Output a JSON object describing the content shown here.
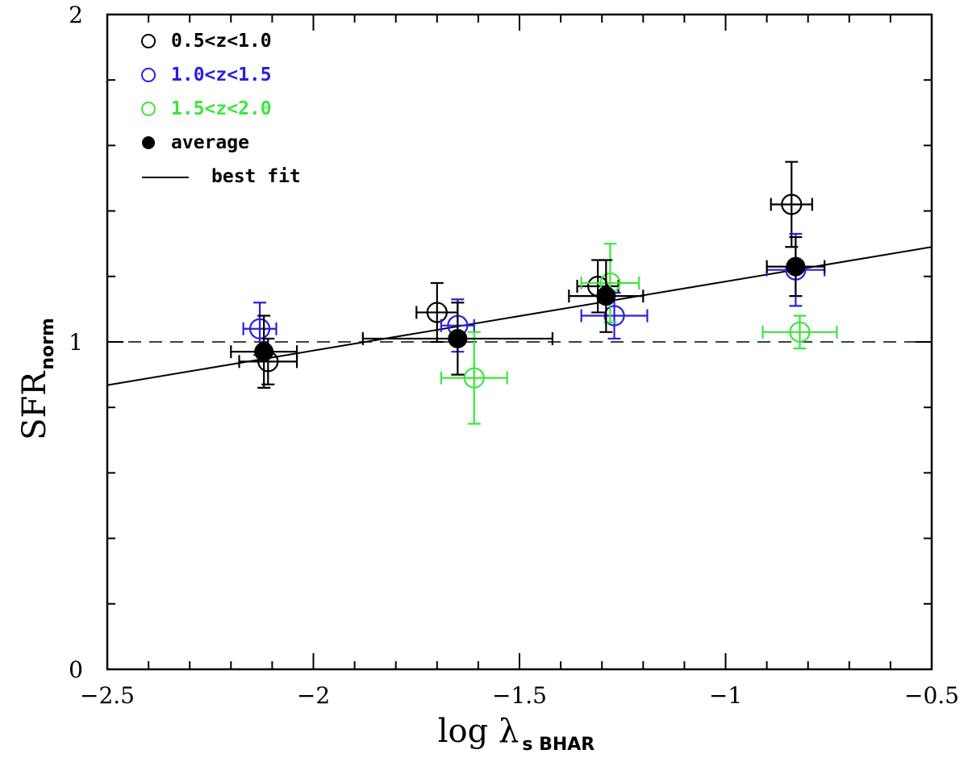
{
  "chart_data": {
    "type": "scatter",
    "xlabel": {
      "main": "log λ",
      "sub": "s BHAR"
    },
    "ylabel": {
      "main": "SFR",
      "sub": "norm"
    },
    "xlim": [
      -2.5,
      -0.5
    ],
    "ylim": [
      0,
      2
    ],
    "x_ticks": [
      {
        "value": -2.5,
        "label": "−2.5"
      },
      {
        "value": -2,
        "label": "−2"
      },
      {
        "value": -1.5,
        "label": "−1.5"
      },
      {
        "value": -1,
        "label": "−1"
      },
      {
        "value": -0.5,
        "label": "−0.5"
      }
    ],
    "y_ticks": [
      {
        "value": 0,
        "label": "0"
      },
      {
        "value": 1,
        "label": "1"
      },
      {
        "value": 2,
        "label": "2"
      }
    ],
    "reference_line": {
      "y": 1.0,
      "style": "dashed"
    },
    "series": [
      {
        "name": "0.5<z<1.0",
        "color": "#000000",
        "marker": "open-circle",
        "points": [
          {
            "x": -2.11,
            "y": 0.94,
            "xerr": 0.07,
            "yerr": 0.07
          },
          {
            "x": -1.7,
            "y": 1.09,
            "xerr": 0.05,
            "yerr": 0.09
          },
          {
            "x": -1.31,
            "y": 1.17,
            "xerr": 0.05,
            "yerr": 0.08
          },
          {
            "x": -0.84,
            "y": 1.42,
            "xerr": 0.05,
            "yerr": 0.13
          }
        ]
      },
      {
        "name": "1.0<z<1.5",
        "color": "#2a1fe0",
        "marker": "open-circle",
        "points": [
          {
            "x": -2.13,
            "y": 1.04,
            "xerr": 0.04,
            "yerr": 0.08
          },
          {
            "x": -1.65,
            "y": 1.05,
            "xerr": 0.04,
            "yerr": 0.08
          },
          {
            "x": -1.27,
            "y": 1.08,
            "xerr": 0.08,
            "yerr": 0.07
          },
          {
            "x": -0.83,
            "y": 1.22,
            "xerr": 0.07,
            "yerr": 0.11
          }
        ]
      },
      {
        "name": "1.5<z<2.0",
        "color": "#3ce63c",
        "marker": "open-circle",
        "points": [
          {
            "x": -1.61,
            "y": 0.89,
            "xerr": 0.08,
            "yerr": 0.14
          },
          {
            "x": -1.28,
            "y": 1.18,
            "xerr": 0.07,
            "yerr": 0.12
          },
          {
            "x": -0.82,
            "y": 1.03,
            "xerr": 0.09,
            "yerr": 0.05
          }
        ]
      },
      {
        "name": "average",
        "color": "#000000",
        "marker": "filled-circle",
        "points": [
          {
            "x": -2.12,
            "y": 0.97,
            "xerr": 0.08,
            "yerr": 0.11
          },
          {
            "x": -1.65,
            "y": 1.01,
            "xerr": 0.23,
            "yerr": 0.11
          },
          {
            "x": -1.29,
            "y": 1.14,
            "xerr": 0.09,
            "yerr": 0.11
          },
          {
            "x": -0.83,
            "y": 1.23,
            "xerr": 0.07,
            "yerr": 0.09
          }
        ]
      }
    ],
    "fit": {
      "name": "best fit",
      "x": [
        -2.5,
        -0.5
      ],
      "y": [
        0.868,
        1.29
      ]
    },
    "legend": {
      "position": "top-left",
      "entries": [
        {
          "label": "0.5<z<1.0",
          "color": "#000000",
          "symbol": "open-circle"
        },
        {
          "label": "1.0<z<1.5",
          "color": "#2a1fe0",
          "symbol": "open-circle"
        },
        {
          "label": "1.5<z<2.0",
          "color": "#3ce63c",
          "symbol": "open-circle"
        },
        {
          "label": "average",
          "color": "#000000",
          "symbol": "filled-circle"
        },
        {
          "label": "best fit",
          "color": "#000000",
          "symbol": "line"
        }
      ]
    }
  }
}
